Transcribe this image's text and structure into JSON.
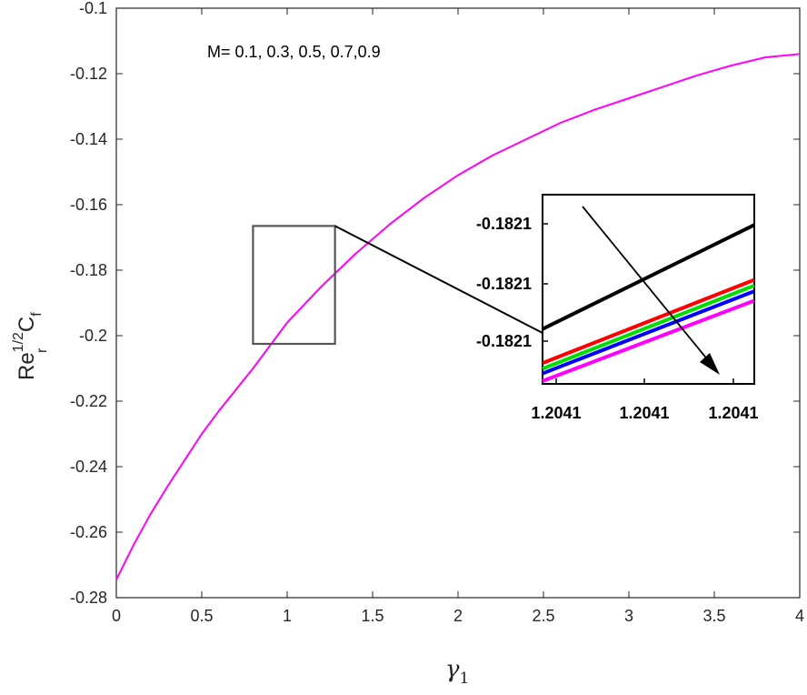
{
  "chart_data": {
    "type": "line",
    "annotation": "M= 0.1, 0.3, 0.5, 0.7,0.9",
    "xlabel": {
      "main": "γ",
      "sub": "1"
    },
    "ylabel": {
      "main": "Re",
      "sup": "1/2",
      "sub_r": "r",
      "main2": "C",
      "sub_f": "f"
    },
    "xlim": [
      0,
      4
    ],
    "ylim": [
      -0.28,
      -0.1
    ],
    "xticks": [
      0,
      0.5,
      1,
      1.5,
      2,
      2.5,
      3,
      3.5,
      4
    ],
    "xtick_labels": [
      "0",
      "0.5",
      "1",
      "1.5",
      "2",
      "2.5",
      "3",
      "3.5",
      "4"
    ],
    "yticks": [
      -0.28,
      -0.26,
      -0.24,
      -0.22,
      -0.2,
      -0.18,
      -0.16,
      -0.14,
      -0.12,
      -0.1
    ],
    "ytick_labels": [
      "-0.28",
      "-0.26",
      "-0.24",
      "-0.22",
      "-0.2",
      "-0.18",
      "-0.16",
      "-0.14",
      "-0.12",
      "-0.1"
    ],
    "series": [
      {
        "color": "#ff00ff",
        "x": [
          0,
          0.1,
          0.2,
          0.3,
          0.4,
          0.5,
          0.6,
          0.8,
          1.0,
          1.2,
          1.4,
          1.6,
          1.8,
          2.0,
          2.2,
          2.4,
          2.6,
          2.8,
          3.0,
          3.2,
          3.4,
          3.6,
          3.8,
          4.0
        ],
        "y": [
          -0.2745,
          -0.264,
          -0.2545,
          -0.246,
          -0.238,
          -0.23,
          -0.223,
          -0.21,
          -0.196,
          -0.185,
          -0.175,
          -0.166,
          -0.158,
          -0.151,
          -0.145,
          -0.14,
          -0.135,
          -0.131,
          -0.1275,
          -0.124,
          -0.1205,
          -0.1175,
          -0.115,
          -0.114
        ]
      }
    ],
    "zoom_box": {
      "x": [
        0.8,
        1.28
      ],
      "y": [
        -0.2025,
        -0.1665
      ]
    },
    "inset": {
      "xtick_labels": [
        "1.2041",
        "1.2041",
        "1.2041"
      ],
      "ytick_labels": [
        "-0.1821",
        "-0.1821",
        "-0.1821"
      ],
      "series": [
        {
          "name": "M=0.1",
          "color": "#000000",
          "y_start": 0.29,
          "y_end": 0.84
        },
        {
          "name": "M=0.3",
          "color": "#ff0000",
          "y_start": 0.11,
          "y_end": 0.55
        },
        {
          "name": "M=0.5",
          "color": "#00dd00",
          "y_start": 0.08,
          "y_end": 0.52
        },
        {
          "name": "M=0.7",
          "color": "#0000ff",
          "y_start": 0.055,
          "y_end": 0.49
        },
        {
          "name": "M=0.9",
          "color": "#ff00ff",
          "y_start": 0.015,
          "y_end": 0.44
        }
      ]
    }
  }
}
